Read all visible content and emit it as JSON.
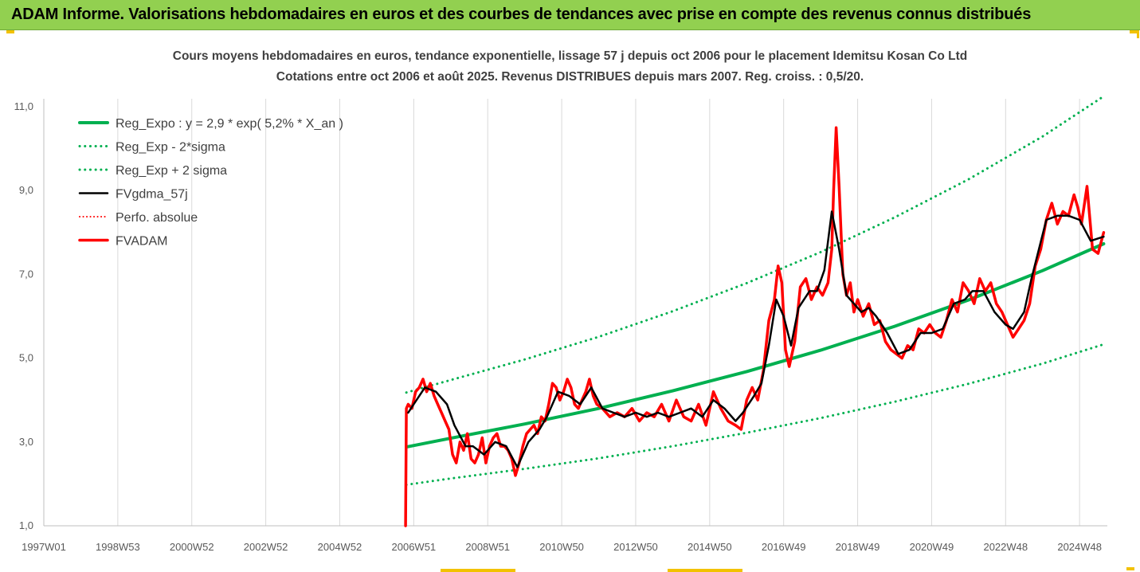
{
  "banner": {
    "title": "ADAM Informe. Valorisations hebdomadaires en euros et des courbes de tendances avec prise en compte des revenus connus distribués",
    "color": "#92d050"
  },
  "chart_data": {
    "type": "line",
    "title": "Cours moyens hebdomadaires en euros, tendance exponentielle, lissage 57 j depuis oct 2006 pour le placement Idemitsu Kosan Co Ltd",
    "subtitle": "Cotations entre oct 2006 et août 2025. Revenus DISTRIBUES depuis mars 2007. Reg. croiss. : 0,5/20.",
    "xlabel": "",
    "ylabel": "",
    "x_tick_labels": [
      "1997W01",
      "1998W53",
      "2000W52",
      "2002W52",
      "2004W52",
      "2006W51",
      "2008W51",
      "2010W50",
      "2012W50",
      "2014W50",
      "2016W49",
      "2018W49",
      "2020W49",
      "2022W48",
      "2024W48"
    ],
    "x_tick_years": [
      1997.0,
      1999.0,
      2001.0,
      2003.0,
      2005.0,
      2007.0,
      2009.0,
      2011.0,
      2013.0,
      2015.0,
      2017.0,
      2019.0,
      2021.0,
      2023.0,
      2025.0
    ],
    "x_range": [
      1997.0,
      2025.75
    ],
    "y_tick_labels": [
      "1,0",
      "3,0",
      "5,0",
      "7,0",
      "9,0",
      "11,0"
    ],
    "y_tick_values": [
      1,
      3,
      5,
      7,
      9,
      11
    ],
    "ylim": [
      1,
      12
    ],
    "grid": "vertical",
    "legend_position": "top-left",
    "series": [
      {
        "name": "Reg_Expo : y = 2,9 * exp( 5,2% *  X_an )",
        "color": "#00b050",
        "style": "solid",
        "width": 4,
        "x": [
          2006.8,
          2008,
          2010,
          2012,
          2014,
          2016,
          2018,
          2020,
          2022,
          2024,
          2025.65
        ],
        "y": [
          2.88,
          3.09,
          3.43,
          3.8,
          4.22,
          4.68,
          5.19,
          5.76,
          6.39,
          7.09,
          7.73
        ]
      },
      {
        "name": "Reg_Exp - 2*sigma",
        "color": "#00b050",
        "style": "dotted",
        "width": 3,
        "x": [
          2006.8,
          2008,
          2010,
          2012,
          2014,
          2016,
          2018,
          2020,
          2022,
          2024,
          2025.65
        ],
        "y": [
          1.98,
          2.13,
          2.36,
          2.61,
          2.9,
          3.22,
          3.57,
          3.96,
          4.39,
          4.87,
          5.33
        ]
      },
      {
        "name": "Reg_Exp + 2 sigma",
        "color": "#00b050",
        "style": "dotted",
        "width": 3,
        "x": [
          2006.8,
          2008,
          2010,
          2012,
          2014,
          2016,
          2018,
          2020,
          2022,
          2024,
          2025.65
        ],
        "y": [
          4.18,
          4.48,
          4.97,
          5.51,
          6.12,
          6.79,
          7.53,
          8.36,
          9.27,
          10.29,
          11.25
        ]
      },
      {
        "name": "FVgdma_57j",
        "color": "#000000",
        "style": "solid",
        "width": 2.5,
        "x": [
          2006.85,
          2007.0,
          2007.3,
          2007.6,
          2007.9,
          2008.1,
          2008.4,
          2008.6,
          2008.9,
          2009.2,
          2009.5,
          2009.8,
          2010.1,
          2010.4,
          2010.6,
          2010.9,
          2011.2,
          2011.5,
          2011.8,
          2012.1,
          2012.4,
          2012.7,
          2013.0,
          2013.3,
          2013.6,
          2013.9,
          2014.2,
          2014.5,
          2014.8,
          2015.1,
          2015.4,
          2015.7,
          2015.9,
          2016.2,
          2016.4,
          2016.6,
          2016.8,
          2017.0,
          2017.2,
          2017.4,
          2017.7,
          2017.9,
          2018.1,
          2018.3,
          2018.5,
          2018.7,
          2018.9,
          2019.1,
          2019.3,
          2019.5,
          2019.8,
          2020.1,
          2020.4,
          2020.7,
          2021.0,
          2021.3,
          2021.6,
          2021.9,
          2022.1,
          2022.4,
          2022.7,
          2023.0,
          2023.2,
          2023.5,
          2023.7,
          2023.9,
          2024.1,
          2024.4,
          2024.7,
          2025.0,
          2025.3,
          2025.65
        ],
        "y": [
          3.7,
          3.9,
          4.3,
          4.2,
          3.9,
          3.4,
          2.9,
          2.9,
          2.7,
          3.0,
          2.9,
          2.4,
          3.0,
          3.3,
          3.6,
          4.2,
          4.1,
          3.9,
          4.3,
          3.8,
          3.7,
          3.6,
          3.7,
          3.6,
          3.7,
          3.6,
          3.7,
          3.8,
          3.6,
          4.0,
          3.8,
          3.5,
          3.7,
          4.1,
          4.4,
          5.3,
          6.4,
          6.0,
          5.3,
          6.2,
          6.6,
          6.6,
          7.1,
          8.5,
          7.6,
          6.5,
          6.3,
          6.1,
          6.2,
          6.0,
          5.6,
          5.1,
          5.2,
          5.6,
          5.6,
          5.7,
          6.3,
          6.4,
          6.6,
          6.6,
          6.1,
          5.8,
          5.7,
          6.1,
          6.9,
          7.6,
          8.3,
          8.4,
          8.4,
          8.3,
          7.8,
          7.9
        ]
      },
      {
        "name": "Perfo. absolue",
        "color": "#ff0000",
        "style": "dotted",
        "width": 2,
        "x": [],
        "y": []
      },
      {
        "name": "FVADAM",
        "color": "#ff0000",
        "style": "solid",
        "width": 3.5,
        "x": [
          2006.78,
          2006.8,
          2006.85,
          2006.95,
          2007.05,
          2007.15,
          2007.25,
          2007.35,
          2007.45,
          2007.55,
          2007.65,
          2007.75,
          2007.85,
          2007.95,
          2008.05,
          2008.15,
          2008.25,
          2008.35,
          2008.45,
          2008.55,
          2008.65,
          2008.75,
          2008.85,
          2008.95,
          2009.05,
          2009.15,
          2009.25,
          2009.35,
          2009.45,
          2009.55,
          2009.65,
          2009.75,
          2009.85,
          2009.95,
          2010.05,
          2010.15,
          2010.25,
          2010.35,
          2010.45,
          2010.55,
          2010.65,
          2010.75,
          2010.85,
          2010.95,
          2011.05,
          2011.15,
          2011.25,
          2011.35,
          2011.45,
          2011.55,
          2011.65,
          2011.75,
          2011.85,
          2011.95,
          2012.1,
          2012.3,
          2012.5,
          2012.7,
          2012.9,
          2013.1,
          2013.3,
          2013.5,
          2013.7,
          2013.9,
          2014.1,
          2014.3,
          2014.5,
          2014.7,
          2014.9,
          2015.1,
          2015.3,
          2015.5,
          2015.7,
          2015.85,
          2016.0,
          2016.15,
          2016.3,
          2016.45,
          2016.6,
          2016.75,
          2016.85,
          2016.95,
          2017.05,
          2017.15,
          2017.3,
          2017.45,
          2017.6,
          2017.75,
          2017.9,
          2018.05,
          2018.2,
          2018.3,
          2018.35,
          2018.42,
          2018.5,
          2018.6,
          2018.7,
          2018.8,
          2018.9,
          2019.0,
          2019.15,
          2019.3,
          2019.45,
          2019.6,
          2019.75,
          2019.9,
          2020.05,
          2020.2,
          2020.35,
          2020.5,
          2020.65,
          2020.8,
          2020.95,
          2021.1,
          2021.25,
          2021.4,
          2021.55,
          2021.7,
          2021.85,
          2022.0,
          2022.15,
          2022.3,
          2022.45,
          2022.6,
          2022.75,
          2022.9,
          2023.05,
          2023.2,
          2023.35,
          2023.5,
          2023.65,
          2023.8,
          2023.95,
          2024.1,
          2024.25,
          2024.4,
          2024.55,
          2024.7,
          2024.85,
          2024.95,
          2025.05,
          2025.2,
          2025.35,
          2025.5,
          2025.65
        ],
        "y": [
          1.0,
          3.8,
          3.9,
          3.8,
          4.2,
          4.3,
          4.5,
          4.2,
          4.4,
          4.1,
          3.9,
          3.7,
          3.5,
          3.3,
          2.7,
          2.5,
          3.0,
          2.8,
          3.2,
          2.6,
          2.5,
          2.7,
          3.1,
          2.5,
          2.9,
          3.1,
          3.2,
          2.9,
          2.9,
          2.8,
          2.6,
          2.2,
          2.5,
          2.9,
          3.2,
          3.3,
          3.4,
          3.2,
          3.6,
          3.5,
          3.9,
          4.4,
          4.3,
          4.0,
          4.2,
          4.5,
          4.3,
          3.9,
          3.8,
          4.0,
          4.2,
          4.5,
          4.1,
          3.9,
          3.8,
          3.6,
          3.7,
          3.6,
          3.8,
          3.5,
          3.7,
          3.6,
          3.9,
          3.5,
          4.0,
          3.6,
          3.5,
          3.9,
          3.4,
          4.2,
          3.8,
          3.5,
          3.4,
          3.3,
          4.0,
          4.3,
          4.0,
          4.7,
          5.9,
          6.4,
          7.2,
          6.8,
          5.2,
          4.8,
          5.4,
          6.7,
          6.9,
          6.4,
          6.7,
          6.5,
          6.8,
          7.6,
          9.0,
          10.5,
          9.1,
          7.0,
          6.5,
          6.8,
          6.1,
          6.4,
          6.0,
          6.3,
          5.8,
          5.9,
          5.4,
          5.2,
          5.1,
          5.0,
          5.3,
          5.2,
          5.7,
          5.6,
          5.8,
          5.6,
          5.5,
          5.9,
          6.4,
          6.1,
          6.8,
          6.6,
          6.3,
          6.9,
          6.6,
          6.8,
          6.3,
          6.1,
          5.8,
          5.5,
          5.7,
          5.9,
          6.3,
          7.2,
          7.6,
          8.3,
          8.7,
          8.2,
          8.5,
          8.4,
          8.9,
          8.6,
          8.2,
          9.1,
          7.6,
          7.5,
          8.0
        ]
      }
    ]
  }
}
